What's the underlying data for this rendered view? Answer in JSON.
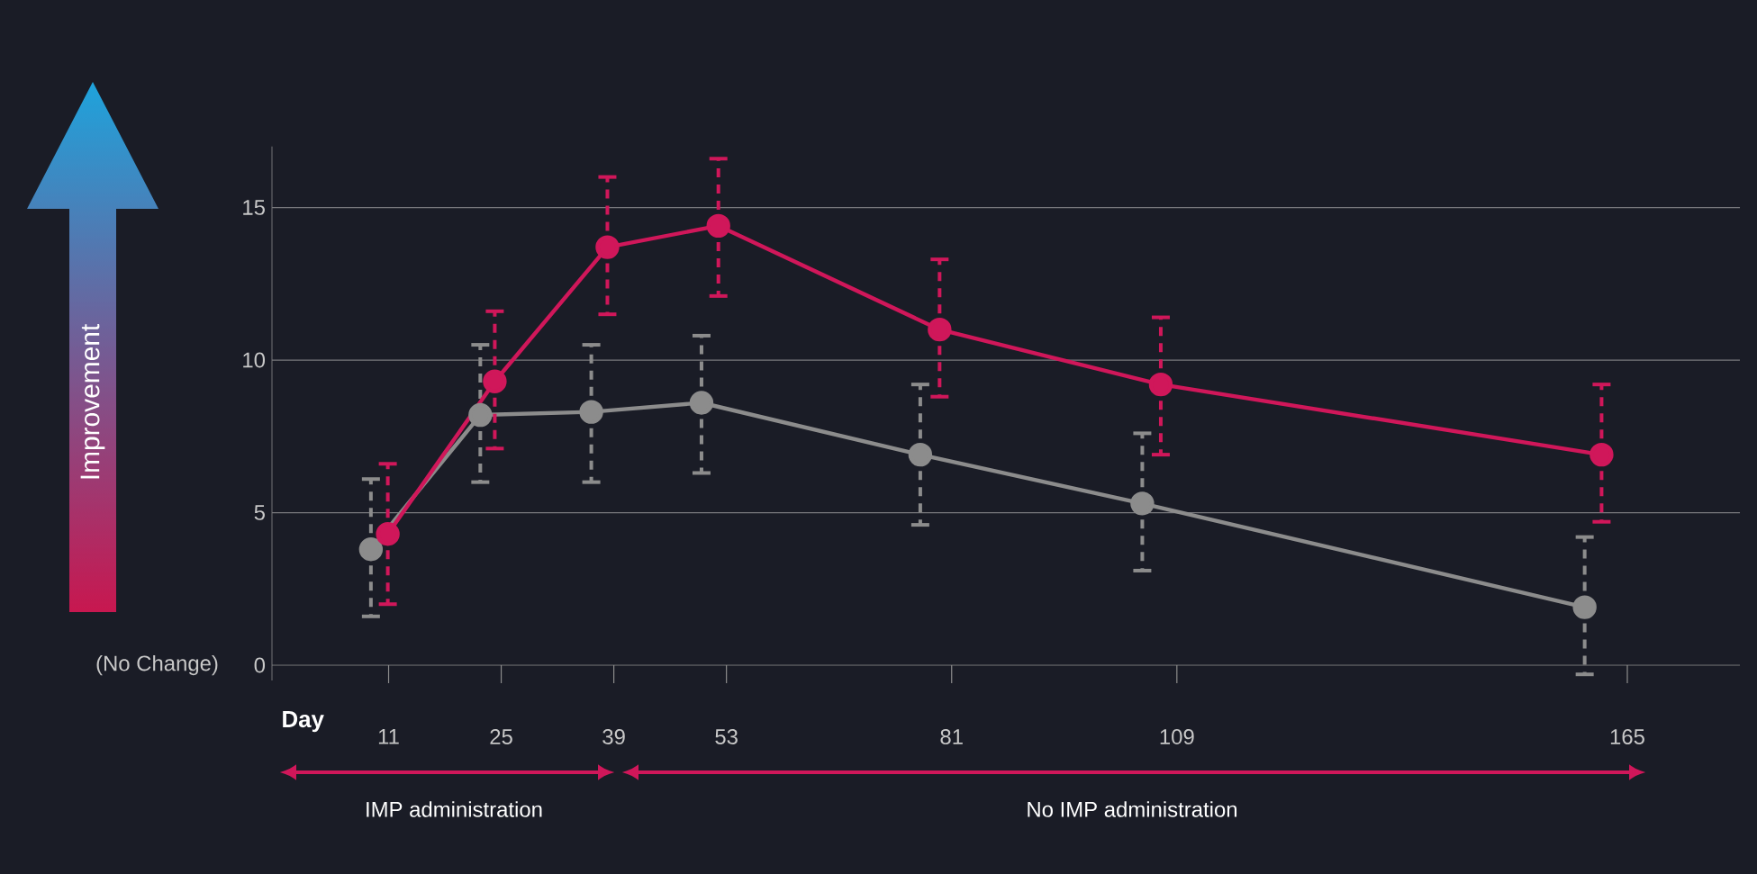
{
  "chart_data": {
    "type": "line",
    "xlabel": "Day",
    "annotations": [
      "(No Change)",
      "IMP administration",
      "No IMP administration",
      "Improvement"
    ],
    "xlim": [
      -3.5,
      179
    ],
    "ylim": [
      -0.5,
      17
    ],
    "xticks": [
      11,
      25,
      39,
      53,
      81,
      109,
      165
    ],
    "yticks": [
      0,
      5,
      10,
      15
    ],
    "grid": "y",
    "marker": "circle",
    "line_style": "solid",
    "series": [
      {
        "color": "#8c8c8c",
        "x": [
          8.8,
          22.4,
          36.2,
          49.9,
          77.1,
          104.7,
          159.7
        ],
        "values": [
          3.8,
          8.2,
          8.3,
          8.6,
          6.9,
          5.3,
          1.9
        ],
        "errors": [
          [
            1.6,
            6.1
          ],
          [
            6.0,
            10.5
          ],
          [
            6.0,
            10.5
          ],
          [
            6.3,
            10.8
          ],
          [
            4.6,
            9.2
          ],
          [
            3.1,
            7.6
          ],
          [
            -0.3,
            4.2
          ]
        ]
      },
      {
        "color": "#d0175a",
        "x": [
          10.9,
          24.2,
          38.2,
          52.0,
          79.5,
          107.0,
          161.8
        ],
        "values": [
          4.3,
          9.3,
          13.7,
          14.4,
          11.0,
          9.2,
          6.9
        ],
        "errors": [
          [
            2.0,
            6.6
          ],
          [
            7.1,
            11.6
          ],
          [
            11.5,
            16.0
          ],
          [
            12.1,
            16.6
          ],
          [
            8.8,
            13.3
          ],
          [
            6.9,
            11.4
          ],
          [
            4.7,
            9.2
          ]
        ]
      }
    ]
  }
}
